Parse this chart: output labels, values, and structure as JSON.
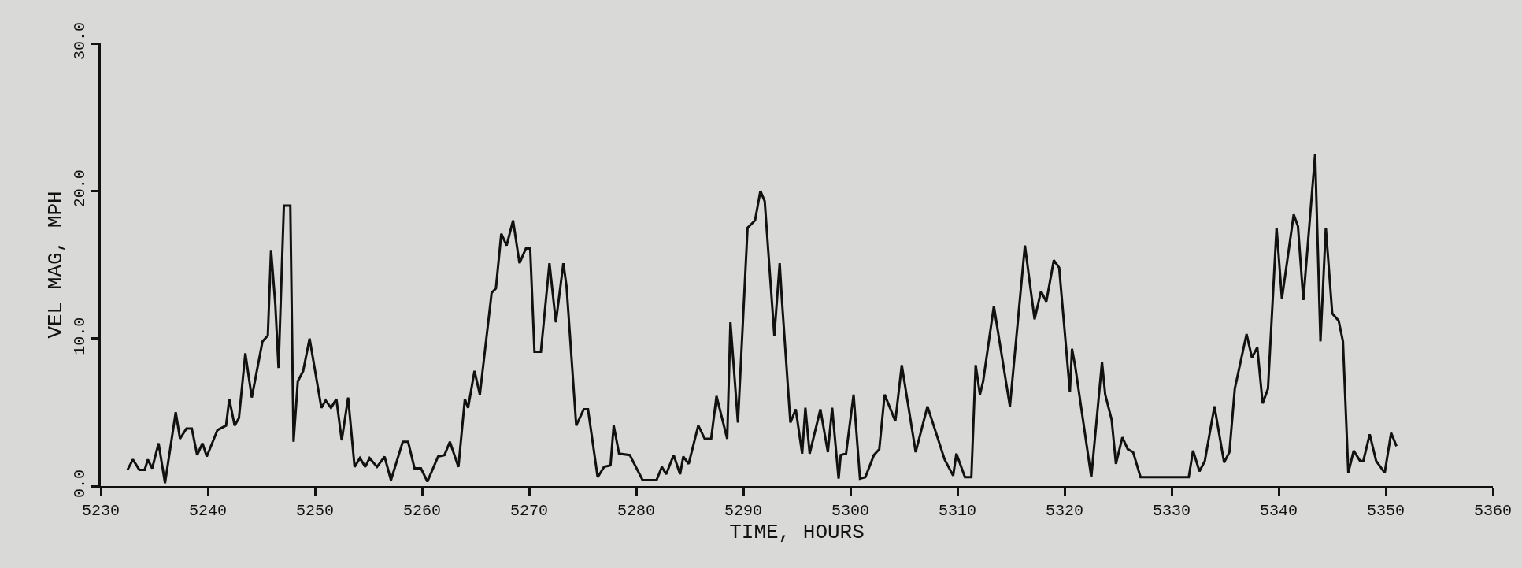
{
  "chart_data": {
    "type": "line",
    "xlabel": "TIME, HOURS",
    "ylabel": "VEL MAG, MPH",
    "xlim": [
      5230,
      5360
    ],
    "xticks": [
      5230,
      5240,
      5250,
      5260,
      5270,
      5280,
      5290,
      5300,
      5310,
      5320,
      5330,
      5340,
      5350,
      5360
    ],
    "ylim": [
      0,
      30
    ],
    "yticks": [
      {
        "value": 0,
        "label": "0.0"
      },
      {
        "value": 10,
        "label": "10.0"
      },
      {
        "value": 20,
        "label": "20.0"
      },
      {
        "value": 30,
        "label": "30.0"
      }
    ],
    "grid": false,
    "marker": "none",
    "line_style": "solid",
    "series": [
      {
        "color": "#111111",
        "x": [
          5232.5,
          5233.0,
          5233.6,
          5234.1,
          5234.4,
          5234.8,
          5235.4,
          5236.0,
          5237.0,
          5237.4,
          5238.0,
          5238.5,
          5239.0,
          5239.5,
          5239.9,
          5240.9,
          5241.7,
          5242.0,
          5242.5,
          5242.9,
          5243.5,
          5244.1,
          5245.1,
          5245.6,
          5245.9,
          5246.3,
          5246.6,
          5247.1,
          5247.7,
          5248.0,
          5248.4,
          5248.9,
          5249.5,
          5250.6,
          5251.0,
          5251.5,
          5252.0,
          5252.5,
          5253.1,
          5253.7,
          5254.2,
          5254.7,
          5255.1,
          5255.8,
          5256.5,
          5257.1,
          5258.2,
          5258.7,
          5259.3,
          5259.9,
          5260.5,
          5261.5,
          5262.1,
          5262.6,
          5263.4,
          5264.0,
          5264.3,
          5264.9,
          5265.4,
          5266.5,
          5266.9,
          5267.4,
          5267.9,
          5268.5,
          5269.1,
          5269.7,
          5270.1,
          5270.5,
          5271.1,
          5271.9,
          5272.5,
          5273.2,
          5273.5,
          5274.4,
          5275.1,
          5275.5,
          5276.4,
          5277.0,
          5277.6,
          5277.9,
          5278.4,
          5279.4,
          5280.6,
          5281.9,
          5282.4,
          5282.8,
          5283.5,
          5284.1,
          5284.4,
          5284.9,
          5285.8,
          5286.4,
          5287.0,
          5287.5,
          5288.5,
          5288.8,
          5289.5,
          5290.4,
          5291.1,
          5291.6,
          5292.0,
          5292.9,
          5293.4,
          5293.6,
          5294.4,
          5294.9,
          5295.5,
          5295.8,
          5296.2,
          5297.2,
          5297.9,
          5298.3,
          5298.9,
          5299.1,
          5299.6,
          5300.3,
          5300.9,
          5301.4,
          5302.2,
          5302.7,
          5303.2,
          5304.2,
          5304.8,
          5306.1,
          5307.2,
          5308.8,
          5309.6,
          5309.9,
          5310.7,
          5311.3,
          5311.7,
          5312.1,
          5312.4,
          5313.4,
          5314.9,
          5316.3,
          5317.2,
          5317.8,
          5318.3,
          5319.0,
          5319.5,
          5320.5,
          5320.7,
          5321.0,
          5322.5,
          5323.5,
          5323.8,
          5324.4,
          5324.8,
          5325.4,
          5325.9,
          5326.4,
          5327.1,
          5331.6,
          5332.0,
          5332.6,
          5333.1,
          5334.0,
          5334.9,
          5335.4,
          5335.9,
          5337.0,
          5337.5,
          5338.0,
          5338.5,
          5339.0,
          5339.8,
          5340.3,
          5341.4,
          5341.8,
          5342.3,
          5343.4,
          5343.9,
          5344.4,
          5345.0,
          5345.6,
          5346.0,
          5346.5,
          5347.0,
          5347.6,
          5347.9,
          5348.5,
          5349.1,
          5349.9,
          5350.5,
          5351.0
        ],
        "values": [
          1.1,
          1.8,
          1.1,
          1.1,
          1.8,
          1.2,
          2.9,
          0.2,
          5.0,
          3.2,
          3.9,
          3.9,
          2.1,
          2.9,
          2.0,
          3.8,
          4.1,
          5.9,
          4.1,
          4.6,
          9.0,
          6.0,
          9.8,
          10.2,
          16.0,
          12.3,
          8.0,
          19.0,
          19.0,
          3.0,
          7.1,
          7.8,
          10.0,
          5.3,
          5.8,
          5.3,
          5.9,
          3.1,
          6.0,
          1.3,
          1.9,
          1.3,
          1.9,
          1.3,
          2.0,
          0.4,
          3.0,
          3.0,
          1.2,
          1.2,
          0.3,
          2.0,
          2.1,
          3.0,
          1.3,
          5.9,
          5.3,
          7.8,
          6.2,
          13.1,
          13.4,
          17.1,
          16.3,
          18.0,
          15.1,
          16.1,
          16.1,
          9.1,
          9.1,
          15.1,
          11.1,
          15.1,
          13.5,
          4.1,
          5.2,
          5.2,
          0.6,
          1.3,
          1.4,
          4.1,
          2.2,
          2.1,
          0.4,
          0.4,
          1.3,
          0.8,
          2.1,
          0.8,
          2.0,
          1.5,
          4.1,
          3.2,
          3.2,
          6.1,
          3.2,
          11.1,
          4.3,
          17.5,
          18.0,
          20.0,
          19.3,
          10.2,
          15.1,
          12.7,
          4.3,
          5.2,
          2.2,
          5.3,
          2.2,
          5.2,
          2.3,
          5.3,
          0.5,
          2.1,
          2.2,
          6.2,
          0.5,
          0.6,
          2.1,
          2.5,
          6.2,
          4.4,
          8.2,
          2.3,
          5.4,
          1.8,
          0.7,
          2.2,
          0.6,
          0.6,
          8.2,
          6.2,
          7.1,
          12.2,
          5.4,
          16.3,
          11.3,
          13.2,
          12.5,
          15.3,
          14.8,
          6.4,
          9.3,
          8.1,
          0.6,
          8.4,
          6.2,
          4.5,
          1.5,
          3.3,
          2.5,
          2.3,
          0.6,
          0.6,
          2.4,
          1.0,
          1.7,
          5.4,
          1.6,
          2.3,
          6.6,
          10.3,
          8.7,
          9.4,
          5.6,
          6.6,
          17.5,
          12.7,
          18.4,
          17.6,
          12.6,
          22.5,
          9.8,
          17.5,
          11.7,
          11.2,
          9.8,
          0.9,
          2.4,
          1.7,
          1.7,
          3.5,
          1.7,
          0.9,
          3.6,
          2.7
        ]
      }
    ]
  }
}
